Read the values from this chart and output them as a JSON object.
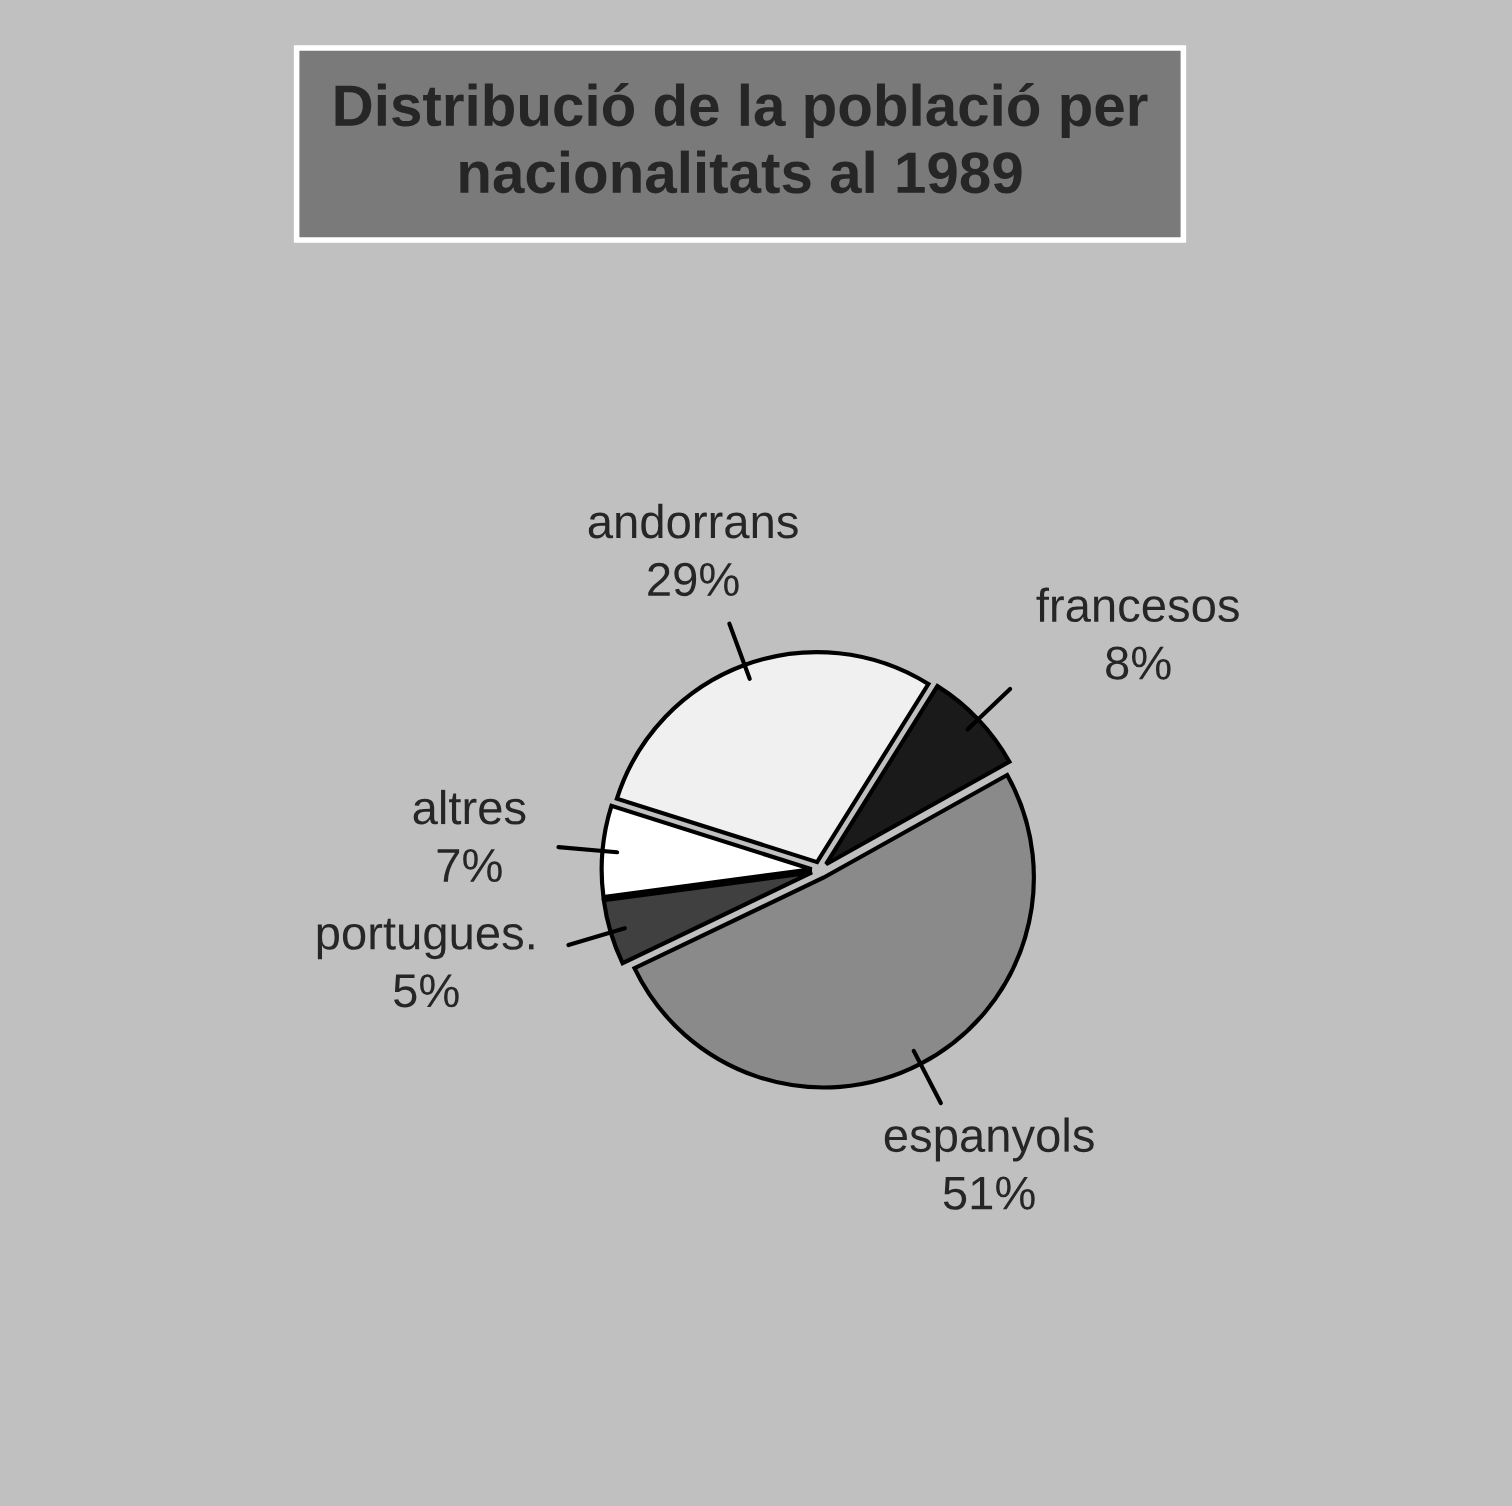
{
  "chart_data": {
    "type": "pie",
    "title": "Distribució de la població per\nnacionalitats al 1989",
    "categories": [
      "francesos",
      "espanyols",
      "portugues.",
      "altres",
      "andorrans"
    ],
    "values": [
      8,
      51,
      5,
      7,
      29
    ],
    "value_labels": [
      "8%",
      "51%",
      "5%",
      "7%",
      "29%"
    ],
    "colors": [
      "#1a1a1a",
      "#8a8a8a",
      "#404040",
      "#ffffff",
      "#f0f0f0"
    ]
  }
}
